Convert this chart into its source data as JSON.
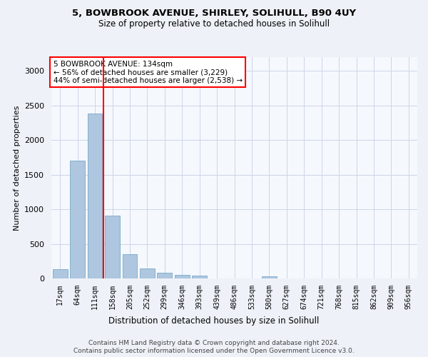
{
  "title_line1": "5, BOWBROOK AVENUE, SHIRLEY, SOLIHULL, B90 4UY",
  "title_line2": "Size of property relative to detached houses in Solihull",
  "xlabel": "Distribution of detached houses by size in Solihull",
  "ylabel": "Number of detached properties",
  "categories": [
    "17sqm",
    "64sqm",
    "111sqm",
    "158sqm",
    "205sqm",
    "252sqm",
    "299sqm",
    "346sqm",
    "393sqm",
    "439sqm",
    "486sqm",
    "533sqm",
    "580sqm",
    "627sqm",
    "674sqm",
    "721sqm",
    "768sqm",
    "815sqm",
    "862sqm",
    "909sqm",
    "956sqm"
  ],
  "values": [
    130,
    1700,
    2380,
    910,
    350,
    140,
    80,
    50,
    40,
    0,
    0,
    0,
    30,
    0,
    0,
    0,
    0,
    0,
    0,
    0,
    0
  ],
  "bar_color": "#aec6df",
  "bar_edge_color": "#6a9fc0",
  "vline_color": "red",
  "annotation_text": "5 BOWBROOK AVENUE: 134sqm\n← 56% of detached houses are smaller (3,229)\n44% of semi-detached houses are larger (2,538) →",
  "annotation_box_color": "white",
  "annotation_box_edgecolor": "red",
  "ylim": [
    0,
    3200
  ],
  "yticks": [
    0,
    500,
    1000,
    1500,
    2000,
    2500,
    3000
  ],
  "footer_line1": "Contains HM Land Registry data © Crown copyright and database right 2024.",
  "footer_line2": "Contains public sector information licensed under the Open Government Licence v3.0.",
  "bg_color": "#eef2f8",
  "plot_bg_color": "#f5f8fd",
  "grid_color": "#ccd5e8"
}
